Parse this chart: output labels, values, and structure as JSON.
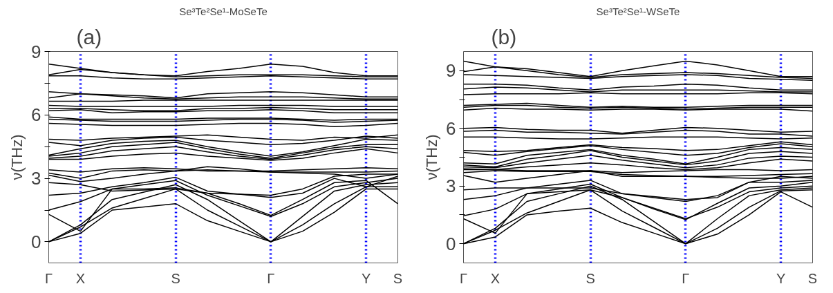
{
  "chart_data": [
    {
      "type": "line",
      "title": "Se³Te²Se¹-MoSeTe",
      "ylabel": "ν(THz)",
      "annotations": [
        "(a)"
      ],
      "grid": "x",
      "marker": "none",
      "line_style": "solid",
      "ylim": [
        -1,
        9
      ],
      "yticks": [
        0,
        {
          "value": 1.5,
          "label": null
        },
        3,
        {
          "value": 4.5,
          "label": null
        },
        6,
        {
          "value": 7.5,
          "label": null
        },
        9
      ],
      "categories": [
        "Γ",
        "X",
        null,
        null,
        "S",
        null,
        null,
        "Γ",
        null,
        null,
        "Y",
        "S"
      ],
      "series": [
        {
          "color": "#000000",
          "values": [
            8.4,
            8.2,
            8.0,
            7.9,
            7.85,
            8.05,
            8.2,
            8.4,
            8.3,
            8.0,
            7.85,
            7.85
          ]
        },
        {
          "color": "#000000",
          "values": [
            7.9,
            8.15,
            8.0,
            7.9,
            7.8,
            7.85,
            7.9,
            7.9,
            7.9,
            7.85,
            7.8,
            7.8
          ]
        },
        {
          "color": "#000000",
          "values": [
            7.85,
            7.85,
            7.75,
            7.7,
            7.7,
            7.75,
            7.8,
            7.85,
            7.8,
            7.75,
            7.7,
            7.7
          ]
        },
        {
          "color": "#000000",
          "values": [
            7.1,
            7.0,
            6.95,
            6.9,
            6.8,
            7.0,
            7.05,
            7.1,
            7.05,
            6.95,
            6.85,
            6.85
          ]
        },
        {
          "color": "#000000",
          "values": [
            6.8,
            7.0,
            6.9,
            6.8,
            6.75,
            6.8,
            6.85,
            6.85,
            6.85,
            6.8,
            6.75,
            6.75
          ]
        },
        {
          "color": "#000000",
          "values": [
            6.65,
            6.65,
            6.65,
            6.7,
            6.7,
            6.7,
            6.7,
            6.7,
            6.7,
            6.7,
            6.7,
            6.7
          ]
        },
        {
          "color": "#000000",
          "values": [
            6.45,
            6.4,
            6.4,
            6.4,
            6.4,
            6.4,
            6.45,
            6.45,
            6.45,
            6.4,
            6.4,
            6.4
          ]
        },
        {
          "color": "#000000",
          "values": [
            6.3,
            6.3,
            6.25,
            6.2,
            6.2,
            6.3,
            6.3,
            6.35,
            6.3,
            6.25,
            6.25,
            6.25
          ]
        },
        {
          "color": "#000000",
          "values": [
            6.2,
            6.25,
            6.1,
            6.15,
            6.15,
            6.2,
            6.2,
            6.25,
            6.2,
            6.1,
            6.1,
            6.1
          ]
        },
        {
          "color": "#000000",
          "values": [
            5.9,
            5.8,
            5.8,
            5.8,
            5.8,
            5.85,
            5.85,
            5.85,
            5.8,
            5.75,
            5.8,
            5.8
          ]
        },
        {
          "color": "#000000",
          "values": [
            5.8,
            5.75,
            5.7,
            5.7,
            5.7,
            5.75,
            5.8,
            5.8,
            5.75,
            5.65,
            5.7,
            5.75
          ]
        },
        {
          "color": "#000000",
          "values": [
            5.6,
            5.55,
            5.5,
            5.5,
            5.5,
            5.55,
            5.6,
            5.6,
            5.55,
            5.45,
            5.5,
            5.6
          ]
        },
        {
          "color": "#000000",
          "values": [
            4.85,
            4.8,
            4.9,
            4.95,
            5.0,
            5.05,
            4.95,
            4.85,
            4.8,
            4.95,
            4.9,
            5.05
          ]
        },
        {
          "color": "#000000",
          "values": [
            4.7,
            4.55,
            4.8,
            4.9,
            4.95,
            4.8,
            4.7,
            4.6,
            4.65,
            4.8,
            5.0,
            4.9
          ]
        },
        {
          "color": "#000000",
          "values": [
            4.1,
            4.4,
            4.65,
            4.75,
            4.8,
            4.5,
            4.25,
            4.05,
            4.25,
            4.55,
            4.85,
            4.8
          ]
        },
        {
          "color": "#000000",
          "values": [
            4.05,
            4.2,
            4.5,
            4.6,
            4.7,
            4.4,
            4.15,
            3.95,
            4.2,
            4.45,
            4.6,
            4.6
          ]
        },
        {
          "color": "#000000",
          "values": [
            3.95,
            4.05,
            4.3,
            4.4,
            4.5,
            4.25,
            4.05,
            3.9,
            4.1,
            4.35,
            4.5,
            4.4
          ]
        },
        {
          "color": "#000000",
          "values": [
            3.9,
            3.9,
            4.05,
            4.15,
            4.2,
            4.05,
            3.95,
            3.85,
            3.95,
            4.2,
            4.4,
            4.2
          ]
        },
        {
          "color": "#000000",
          "values": [
            3.4,
            3.3,
            3.45,
            3.5,
            3.45,
            3.35,
            3.35,
            3.35,
            3.4,
            3.45,
            3.5,
            3.45
          ]
        },
        {
          "color": "#000000",
          "values": [
            3.25,
            3.0,
            3.35,
            3.4,
            3.35,
            3.55,
            3.45,
            3.3,
            3.3,
            3.3,
            3.3,
            3.35
          ]
        },
        {
          "color": "#000000",
          "values": [
            3.15,
            2.85,
            3.0,
            3.2,
            3.35,
            3.4,
            3.35,
            3.3,
            3.25,
            3.2,
            3.0,
            3.2
          ]
        },
        {
          "color": "#000000",
          "values": [
            0,
            0.4,
            1.5,
            1.65,
            1.8,
            1.0,
            0.5,
            0,
            0.5,
            1.4,
            2.5,
            2.5
          ]
        },
        {
          "color": "#000000",
          "values": [
            0,
            0.7,
            1.6,
            2.05,
            2.5,
            1.5,
            0.75,
            0,
            0.8,
            1.8,
            2.6,
            2.6
          ]
        },
        {
          "color": "#000000",
          "values": [
            0,
            0.8,
            2.0,
            2.35,
            2.7,
            2.0,
            1.0,
            0,
            1.2,
            2.4,
            2.7,
            2.8
          ]
        },
        {
          "color": "#000000",
          "values": [
            1.3,
            0.5,
            2.5,
            2.7,
            2.9,
            2.2,
            1.7,
            1.2,
            1.8,
            2.6,
            2.8,
            3.0
          ]
        },
        {
          "color": "#000000",
          "values": [
            1.5,
            1.9,
            2.5,
            2.5,
            2.55,
            2.3,
            1.8,
            1.25,
            2.0,
            2.8,
            2.9,
            1.8
          ]
        },
        {
          "color": "#000000",
          "values": [
            2.2,
            2.3,
            2.6,
            2.8,
            3.05,
            2.4,
            2.25,
            2.1,
            2.3,
            3.0,
            2.6,
            3.1
          ]
        },
        {
          "color": "#000000",
          "values": [
            2.8,
            2.7,
            2.4,
            2.45,
            2.5,
            2.3,
            2.25,
            2.2,
            2.5,
            3.1,
            3.2,
            3.2
          ]
        }
      ]
    },
    {
      "type": "line",
      "title": "Se³Te²Se¹-WSeTe",
      "ylabel": "ν(THz)",
      "annotations": [
        "(b)"
      ],
      "grid": "x",
      "marker": "none",
      "line_style": "solid",
      "ylim": [
        -1,
        10
      ],
      "yticks": [
        0,
        {
          "value": 1.5,
          "label": null
        },
        3,
        {
          "value": 4.5,
          "label": null
        },
        6,
        {
          "value": 7.5,
          "label": null
        },
        9
      ],
      "categories": [
        "Γ",
        "X",
        null,
        null,
        "S",
        null,
        null,
        "Γ",
        null,
        null,
        "Y",
        "S"
      ],
      "series": [
        {
          "color": "#000000",
          "values": [
            9.5,
            9.2,
            9.1,
            8.9,
            8.7,
            9.0,
            9.25,
            9.5,
            9.3,
            9.0,
            8.7,
            8.7
          ]
        },
        {
          "color": "#000000",
          "values": [
            8.95,
            9.2,
            9.0,
            8.8,
            8.65,
            8.8,
            8.85,
            8.9,
            8.85,
            8.75,
            8.65,
            8.6
          ]
        },
        {
          "color": "#000000",
          "values": [
            8.8,
            8.75,
            8.7,
            8.65,
            8.6,
            8.7,
            8.75,
            8.8,
            8.75,
            8.6,
            8.55,
            8.5
          ]
        },
        {
          "color": "#000000",
          "values": [
            8.3,
            8.3,
            8.25,
            8.1,
            8.0,
            8.15,
            8.2,
            8.3,
            8.25,
            8.1,
            8.0,
            8.0
          ]
        },
        {
          "color": "#000000",
          "values": [
            8.05,
            8.15,
            8.1,
            8.0,
            7.9,
            8.0,
            8.0,
            8.0,
            8.0,
            7.95,
            7.9,
            7.9
          ]
        },
        {
          "color": "#000000",
          "values": [
            7.75,
            7.8,
            7.8,
            7.8,
            7.85,
            7.8,
            7.8,
            7.8,
            7.8,
            7.85,
            7.85,
            7.8
          ]
        },
        {
          "color": "#000000",
          "values": [
            7.2,
            7.25,
            7.3,
            7.2,
            7.1,
            7.15,
            7.1,
            7.1,
            7.15,
            7.2,
            7.2,
            7.2
          ]
        },
        {
          "color": "#000000",
          "values": [
            7.1,
            7.2,
            7.2,
            7.1,
            7.05,
            7.1,
            7.05,
            7.0,
            7.05,
            7.1,
            7.1,
            7.1
          ]
        },
        {
          "color": "#000000",
          "values": [
            6.95,
            7.05,
            7.0,
            7.0,
            6.95,
            7.0,
            7.0,
            6.95,
            7.0,
            7.0,
            7.0,
            6.9
          ]
        },
        {
          "color": "#000000",
          "values": [
            6.0,
            6.05,
            5.95,
            5.9,
            5.9,
            5.75,
            5.9,
            6.05,
            6.0,
            5.9,
            5.8,
            5.85
          ]
        },
        {
          "color": "#000000",
          "values": [
            5.85,
            5.9,
            5.8,
            5.8,
            5.75,
            5.7,
            5.8,
            5.9,
            5.85,
            5.7,
            5.7,
            5.6
          ]
        },
        {
          "color": "#000000",
          "values": [
            5.55,
            5.55,
            5.5,
            5.45,
            5.45,
            5.5,
            5.55,
            5.55,
            5.55,
            5.5,
            5.45,
            5.5
          ]
        },
        {
          "color": "#000000",
          "values": [
            4.85,
            4.8,
            4.85,
            5.0,
            5.15,
            5.0,
            4.95,
            4.85,
            4.9,
            5.1,
            5.3,
            5.15
          ]
        },
        {
          "color": "#000000",
          "values": [
            4.75,
            4.6,
            4.8,
            4.95,
            5.1,
            4.9,
            4.75,
            4.6,
            4.7,
            5.0,
            5.2,
            5.05
          ]
        },
        {
          "color": "#000000",
          "values": [
            4.2,
            4.15,
            4.6,
            4.75,
            4.9,
            4.6,
            4.4,
            4.15,
            4.5,
            4.9,
            5.0,
            4.9
          ]
        },
        {
          "color": "#000000",
          "values": [
            4.1,
            4.0,
            4.4,
            4.6,
            4.85,
            4.5,
            4.3,
            4.1,
            4.3,
            4.7,
            4.8,
            4.7
          ]
        },
        {
          "color": "#000000",
          "values": [
            4.0,
            3.95,
            4.2,
            4.4,
            4.6,
            4.35,
            4.15,
            3.95,
            4.1,
            4.45,
            4.55,
            4.5
          ]
        },
        {
          "color": "#000000",
          "values": [
            3.9,
            3.85,
            4.0,
            4.1,
            4.2,
            4.1,
            3.95,
            3.85,
            3.95,
            4.2,
            4.4,
            4.3
          ]
        },
        {
          "color": "#000000",
          "values": [
            3.85,
            3.85,
            3.8,
            3.8,
            3.8,
            3.7,
            3.75,
            3.8,
            3.85,
            3.85,
            3.8,
            3.85
          ]
        },
        {
          "color": "#000000",
          "values": [
            3.7,
            3.8,
            3.75,
            3.75,
            3.75,
            3.6,
            3.55,
            3.5,
            3.5,
            3.55,
            3.6,
            3.65
          ]
        },
        {
          "color": "#000000",
          "values": [
            3.55,
            3.2,
            3.4,
            3.6,
            3.8,
            3.5,
            3.5,
            3.5,
            3.45,
            3.4,
            3.4,
            3.5
          ]
        },
        {
          "color": "#000000",
          "values": [
            0,
            0.35,
            1.5,
            1.7,
            1.85,
            1.1,
            0.55,
            0,
            0.5,
            1.5,
            2.7,
            1.9
          ]
        },
        {
          "color": "#000000",
          "values": [
            0,
            0.7,
            1.6,
            2.2,
            2.8,
            1.7,
            0.85,
            0,
            0.8,
            1.9,
            2.75,
            2.8
          ]
        },
        {
          "color": "#000000",
          "values": [
            0,
            0.8,
            2.2,
            2.6,
            3.0,
            2.3,
            1.15,
            0,
            1.3,
            2.5,
            2.8,
            2.9
          ]
        },
        {
          "color": "#000000",
          "values": [
            1.3,
            0.55,
            2.6,
            2.85,
            3.1,
            2.4,
            1.85,
            1.3,
            1.9,
            2.7,
            2.9,
            3.0
          ]
        },
        {
          "color": "#000000",
          "values": [
            1.45,
            1.8,
            2.6,
            2.7,
            2.8,
            2.4,
            1.8,
            1.25,
            2.1,
            2.9,
            3.0,
            3.2
          ]
        },
        {
          "color": "#000000",
          "values": [
            2.3,
            2.5,
            2.9,
            3.1,
            3.3,
            2.6,
            2.45,
            2.3,
            2.4,
            3.2,
            3.2,
            3.3
          ]
        },
        {
          "color": "#000000",
          "values": [
            2.8,
            2.9,
            2.9,
            2.9,
            2.9,
            2.6,
            2.4,
            2.2,
            2.5,
            3.2,
            3.5,
            3.4
          ]
        }
      ]
    }
  ]
}
